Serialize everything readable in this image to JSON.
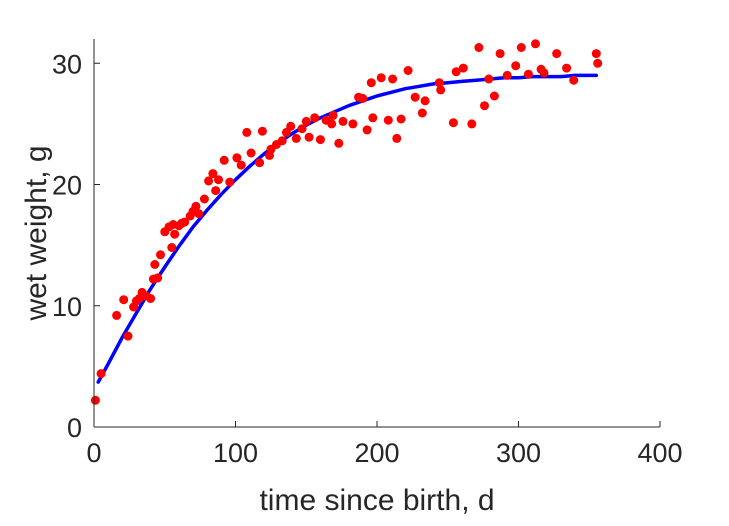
{
  "chart_data": {
    "type": "scatter",
    "xlabel": "time since birth, d",
    "ylabel": "wet weight, g",
    "xlim": [
      0,
      400
    ],
    "ylim": [
      0,
      32
    ],
    "xticks": [
      0,
      100,
      200,
      300,
      400
    ],
    "yticks": [
      0,
      10,
      20,
      30
    ],
    "grid": false,
    "legend": "none",
    "colors": {
      "points": "#ff0000",
      "fit": "#0000ff",
      "axis": "#262626"
    },
    "series": [
      {
        "type": "scatter",
        "x": [
          1,
          5,
          16,
          21,
          24,
          28,
          30,
          32,
          34,
          37,
          40,
          42,
          43,
          45,
          47,
          50,
          53,
          55,
          56,
          57,
          60,
          62,
          64,
          68,
          70,
          72,
          74,
          78,
          81,
          84,
          86,
          88,
          92,
          96,
          101,
          104,
          108,
          111,
          117,
          119,
          124,
          125,
          129,
          133,
          136,
          139,
          143,
          147,
          150,
          152,
          156,
          160,
          164,
          168,
          169,
          173,
          176,
          183,
          187,
          190,
          193,
          196,
          197,
          203,
          208,
          211,
          214,
          217,
          222,
          227,
          232,
          234,
          244,
          245,
          254,
          256,
          261,
          267,
          272,
          276,
          279,
          283,
          287,
          292,
          298,
          302,
          307,
          312,
          316,
          318,
          327,
          334,
          339,
          355,
          356
        ],
        "y": [
          2.2,
          4.4,
          9.2,
          10.5,
          7.5,
          9.9,
          10.4,
          10.6,
          11.1,
          10.8,
          10.6,
          12.2,
          13.4,
          12.3,
          14.2,
          16.1,
          16.5,
          14.8,
          16.7,
          15.9,
          16.6,
          16.8,
          16.9,
          17.4,
          17.8,
          18.2,
          17.6,
          18.8,
          20.3,
          20.9,
          19.5,
          20.4,
          22.0,
          20.2,
          22.2,
          21.6,
          24.3,
          22.6,
          21.8,
          24.4,
          22.4,
          22.9,
          23.3,
          23.6,
          24.3,
          24.8,
          23.8,
          24.6,
          25.2,
          23.9,
          25.5,
          23.7,
          25.3,
          25.0,
          25.7,
          23.4,
          25.2,
          25.0,
          27.2,
          27.1,
          24.5,
          28.4,
          25.5,
          28.8,
          25.3,
          28.7,
          23.8,
          25.4,
          29.4,
          27.2,
          25.9,
          26.9,
          28.4,
          27.8,
          25.1,
          29.3,
          29.6,
          25.0,
          31.3,
          26.5,
          28.7,
          27.3,
          30.8,
          29.0,
          29.8,
          31.3,
          29.1,
          31.6,
          29.5,
          29.2,
          30.8,
          29.6,
          28.6,
          30.8,
          30.0
        ]
      },
      {
        "type": "line",
        "x": [
          3,
          10,
          20,
          30,
          40,
          50,
          60,
          70,
          80,
          90,
          100,
          110,
          120,
          130,
          140,
          150,
          160,
          170,
          180,
          190,
          200,
          210,
          220,
          230,
          240,
          250,
          260,
          270,
          280,
          290,
          300,
          310,
          320,
          330,
          340,
          350,
          355
        ],
        "y": [
          3.7,
          5.2,
          7.4,
          9.4,
          11.4,
          13.2,
          14.9,
          16.5,
          17.9,
          19.2,
          20.4,
          21.5,
          22.5,
          23.4,
          24.2,
          24.9,
          25.5,
          26.0,
          26.5,
          26.9,
          27.3,
          27.6,
          27.9,
          28.1,
          28.3,
          28.4,
          28.5,
          28.6,
          28.7,
          28.8,
          28.8,
          28.9,
          28.9,
          28.9,
          29.0,
          29.0,
          29.0
        ]
      }
    ]
  }
}
